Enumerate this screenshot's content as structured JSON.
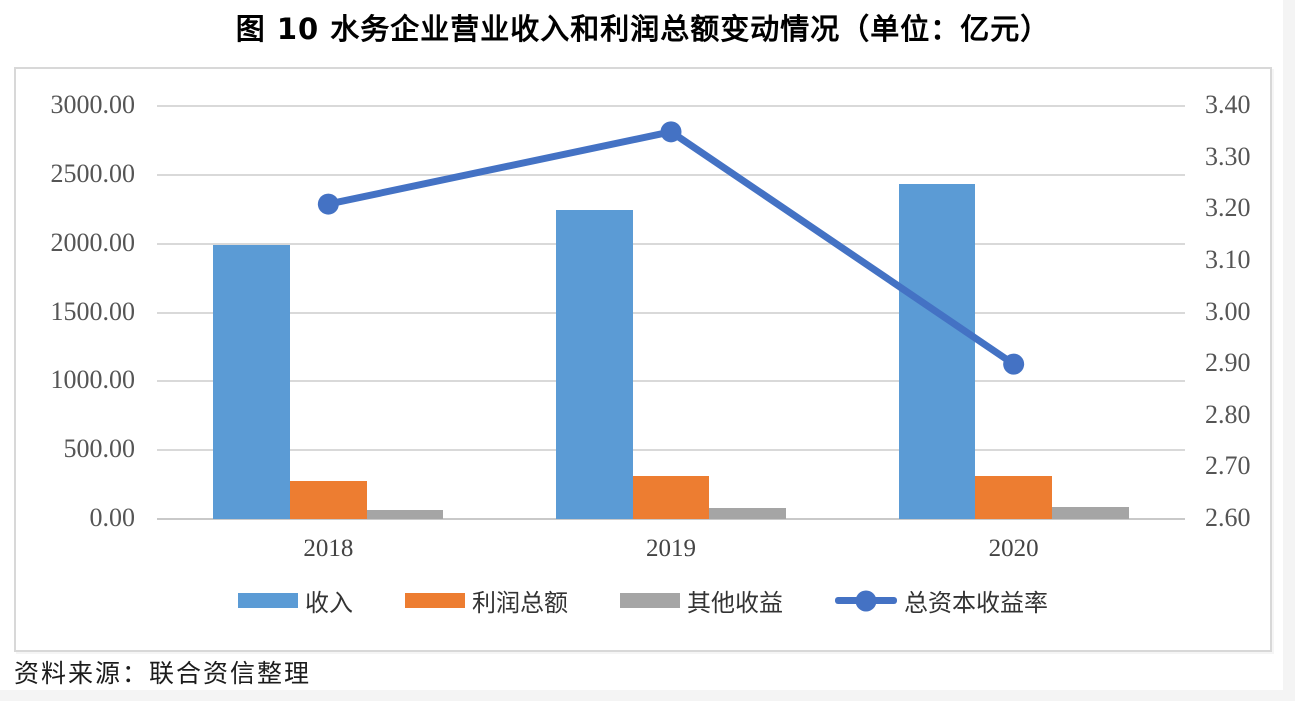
{
  "page": {
    "title": "图 10 水务企业营业收入和利润总额变动情况（单位：亿元）",
    "source_note": "资料来源：联合资信整理"
  },
  "colors": {
    "bar_revenue": "#5B9BD5",
    "bar_profit": "#ED7D31",
    "bar_other_income": "#A5A5A5",
    "line_return_rate": "#4472C4",
    "gridline": "#D9D9D9",
    "frame_border": "#D8D8D8",
    "tick_text": "#555555",
    "title_text": "#000000"
  },
  "chart_data": {
    "type": "bar",
    "subtype": "bar-line-combo",
    "title": "图 10 水务企业营业收入和利润总额变动情况（单位：亿元）",
    "categories": [
      "2018",
      "2019",
      "2020"
    ],
    "series": [
      {
        "id": "revenue",
        "name": "收入",
        "type": "bar",
        "axis": "left",
        "color": "#5B9BD5",
        "values": [
          1990,
          2245,
          2430
        ]
      },
      {
        "id": "total-profit",
        "name": "利润总额",
        "type": "bar",
        "axis": "left",
        "color": "#ED7D31",
        "values": [
          275,
          315,
          310
        ]
      },
      {
        "id": "other-income",
        "name": "其他收益",
        "type": "bar",
        "axis": "left",
        "color": "#A5A5A5",
        "values": [
          68,
          80,
          88
        ]
      },
      {
        "id": "capital-return",
        "name": "总资本收益率",
        "type": "line",
        "axis": "right",
        "color": "#4472C4",
        "values": [
          3.21,
          3.35,
          2.9
        ]
      }
    ],
    "left_axis": {
      "min": 0,
      "max": 3000,
      "tick_labels": [
        "3000.00",
        "2500.00",
        "2000.00",
        "1500.00",
        "1000.00",
        "500.00",
        "0.00"
      ]
    },
    "right_axis": {
      "min": 2.6,
      "max": 3.4,
      "tick_labels": [
        "3.40",
        "3.30",
        "3.20",
        "3.10",
        "3.00",
        "2.90",
        "2.80",
        "2.70",
        "2.60"
      ]
    },
    "grid": true,
    "legend_position": "bottom",
    "xlabel": "",
    "ylabel": ""
  }
}
